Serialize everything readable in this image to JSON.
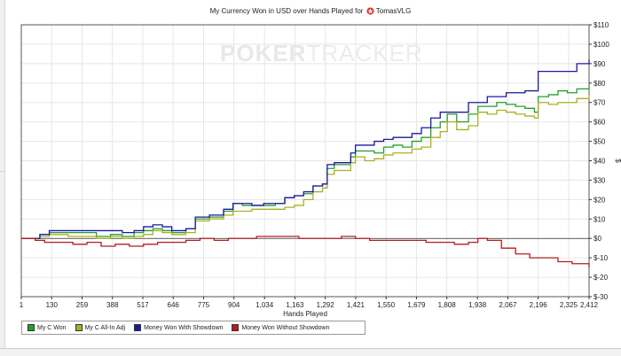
{
  "chart_data": {
    "type": "line",
    "title": "My Currency Won in USD over Hands Played for",
    "player": "TomasVLG",
    "watermark": {
      "part1": "POKER",
      "part2": "TRACKER"
    },
    "xlabel": "Hands Played",
    "ylabel": "$",
    "xlim": [
      1,
      2412
    ],
    "ylim": [
      -30,
      110
    ],
    "x_ticks": [
      1,
      130,
      259,
      388,
      517,
      646,
      775,
      904,
      1034,
      1163,
      1292,
      1421,
      1550,
      1679,
      1808,
      1938,
      2067,
      2196,
      2325,
      2412
    ],
    "x_tick_labels": [
      "1",
      "130",
      "259",
      "388",
      "517",
      "646",
      "775",
      "904",
      "1,034",
      "1,163",
      "1,292",
      "1,421",
      "1,550",
      "1,679",
      "1,808",
      "1,938",
      "2,067",
      "2,196",
      "2,325",
      "2,412"
    ],
    "y_ticks": [
      -30,
      -20,
      -10,
      0,
      10,
      20,
      30,
      40,
      50,
      60,
      70,
      80,
      90,
      100,
      110
    ],
    "y_tick_labels": [
      "$-30",
      "$-20",
      "$-10",
      "$0",
      "$10",
      "$20",
      "$30",
      "$40",
      "$50",
      "$60",
      "$70",
      "$80",
      "$90",
      "$100",
      "$110"
    ],
    "grid": true,
    "legend_position": "bottom-left",
    "series": [
      {
        "name": "My C Won",
        "color": "#22a02a",
        "x": [
          1,
          80,
          120,
          200,
          280,
          320,
          380,
          430,
          480,
          520,
          560,
          600,
          640,
          700,
          740,
          800,
          860,
          900,
          940,
          980,
          1030,
          1080,
          1120,
          1160,
          1200,
          1240,
          1280,
          1300,
          1330,
          1400,
          1420,
          1460,
          1500,
          1540,
          1580,
          1620,
          1660,
          1700,
          1740,
          1780,
          1810,
          1850,
          1900,
          1940,
          1980,
          2020,
          2060,
          2100,
          2140,
          2180,
          2196,
          2240,
          2280,
          2320,
          2360,
          2412
        ],
        "values": [
          0,
          2,
          3,
          3,
          3,
          1,
          2,
          1,
          3,
          4,
          5,
          4,
          3,
          5,
          10,
          11,
          14,
          18,
          17,
          17,
          17,
          18,
          21,
          22,
          23,
          27,
          28,
          36,
          38,
          42,
          45,
          45,
          44,
          47,
          48,
          47,
          50,
          52,
          57,
          60,
          64,
          60,
          64,
          68,
          68,
          70,
          69,
          68,
          67,
          65,
          73,
          74,
          76,
          75,
          77,
          79
        ]
      },
      {
        "name": "My C All-In Adj",
        "color": "#aab020",
        "x": [
          1,
          80,
          120,
          200,
          280,
          320,
          380,
          430,
          480,
          520,
          560,
          600,
          640,
          700,
          740,
          800,
          860,
          900,
          940,
          980,
          1030,
          1080,
          1120,
          1160,
          1200,
          1240,
          1280,
          1300,
          1330,
          1400,
          1420,
          1460,
          1500,
          1540,
          1580,
          1620,
          1660,
          1700,
          1740,
          1780,
          1810,
          1850,
          1900,
          1940,
          1980,
          2020,
          2060,
          2100,
          2140,
          2180,
          2196,
          2240,
          2280,
          2320,
          2360,
          2412
        ],
        "values": [
          0,
          1,
          2,
          1,
          1,
          0,
          1,
          0,
          1,
          2,
          4,
          3,
          2,
          3,
          9,
          10,
          12,
          14,
          14,
          15,
          15,
          15,
          16,
          17,
          20,
          24,
          26,
          33,
          35,
          39,
          42,
          40,
          41,
          43,
          44,
          44,
          46,
          47,
          52,
          55,
          60,
          56,
          58,
          65,
          64,
          66,
          65,
          64,
          63,
          62,
          70,
          69,
          70,
          70,
          72,
          74
        ]
      },
      {
        "name": "Money Won With Showdown",
        "color": "#1a1aa0",
        "x": [
          1,
          80,
          120,
          200,
          280,
          320,
          380,
          430,
          480,
          520,
          560,
          600,
          640,
          700,
          740,
          800,
          860,
          900,
          940,
          980,
          1030,
          1080,
          1120,
          1160,
          1200,
          1240,
          1280,
          1300,
          1330,
          1400,
          1420,
          1460,
          1500,
          1540,
          1580,
          1620,
          1660,
          1700,
          1740,
          1780,
          1810,
          1850,
          1900,
          1940,
          1980,
          2020,
          2060,
          2100,
          2140,
          2180,
          2196,
          2240,
          2280,
          2320,
          2360,
          2412
        ],
        "values": [
          0,
          2,
          4,
          4,
          4,
          4,
          4,
          3,
          4,
          6,
          7,
          6,
          4,
          5,
          11,
          12,
          15,
          18,
          18,
          17,
          18,
          18,
          21,
          22,
          24,
          27,
          28,
          38,
          39,
          44,
          48,
          48,
          50,
          51,
          52,
          52,
          54,
          57,
          62,
          65,
          65,
          65,
          70,
          70,
          73,
          73,
          75,
          75,
          76,
          76,
          86,
          86,
          86,
          86,
          90,
          92
        ]
      },
      {
        "name": "Money Won Without Showdown",
        "color": "#b01e1e",
        "x": [
          1,
          60,
          100,
          160,
          220,
          280,
          340,
          400,
          460,
          520,
          580,
          640,
          700,
          760,
          820,
          880,
          940,
          1000,
          1060,
          1120,
          1180,
          1240,
          1300,
          1360,
          1420,
          1480,
          1540,
          1600,
          1660,
          1720,
          1780,
          1840,
          1900,
          1940,
          1980,
          2040,
          2100,
          2160,
          2220,
          2280,
          2340,
          2412
        ],
        "values": [
          0,
          -1,
          -2,
          -2,
          -3,
          -2,
          -4,
          -3,
          -4,
          -3,
          -2,
          -2,
          -1,
          0,
          -1,
          0,
          0,
          1,
          1,
          1,
          0,
          0,
          0,
          1,
          0,
          -1,
          -1,
          -1,
          -1,
          -2,
          -2,
          -3,
          -2,
          0,
          -1,
          -5,
          -8,
          -10,
          -10,
          -12,
          -13,
          -15
        ]
      }
    ]
  },
  "legend": {
    "items": [
      {
        "label": "My C Won",
        "color": "#22a02a"
      },
      {
        "label": "My C All-In Adj",
        "color": "#aab020"
      },
      {
        "label": "Money Won With Showdown",
        "color": "#1a1aa0"
      },
      {
        "label": "Money Won Without Showdown",
        "color": "#b01e1e"
      }
    ]
  }
}
